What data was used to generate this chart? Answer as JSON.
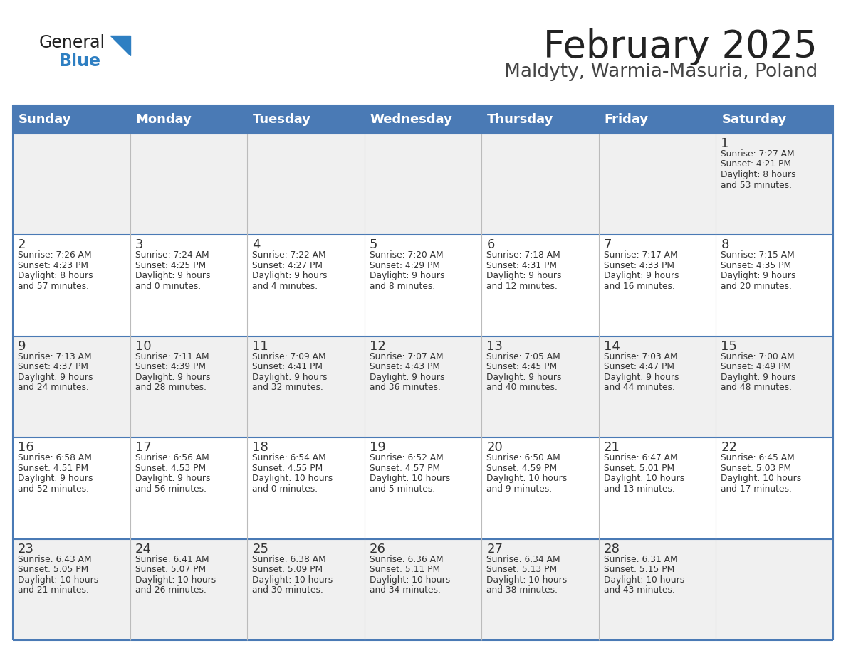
{
  "title": "February 2025",
  "subtitle": "Maldyty, Warmia-Masuria, Poland",
  "days_of_week": [
    "Sunday",
    "Monday",
    "Tuesday",
    "Wednesday",
    "Thursday",
    "Friday",
    "Saturday"
  ],
  "header_bg": "#4a7ab5",
  "header_text": "#ffffff",
  "cell_bg_light": "#f0f0f0",
  "cell_bg_white": "#ffffff",
  "line_color": "#4a7ab5",
  "text_color": "#333333",
  "title_color": "#222222",
  "subtitle_color": "#444444",
  "logo_general_color": "#222222",
  "logo_blue_color": "#2e7fc2",
  "calendar": [
    [
      {
        "day": null,
        "info": ""
      },
      {
        "day": null,
        "info": ""
      },
      {
        "day": null,
        "info": ""
      },
      {
        "day": null,
        "info": ""
      },
      {
        "day": null,
        "info": ""
      },
      {
        "day": null,
        "info": ""
      },
      {
        "day": 1,
        "info": "Sunrise: 7:27 AM\nSunset: 4:21 PM\nDaylight: 8 hours\nand 53 minutes."
      }
    ],
    [
      {
        "day": 2,
        "info": "Sunrise: 7:26 AM\nSunset: 4:23 PM\nDaylight: 8 hours\nand 57 minutes."
      },
      {
        "day": 3,
        "info": "Sunrise: 7:24 AM\nSunset: 4:25 PM\nDaylight: 9 hours\nand 0 minutes."
      },
      {
        "day": 4,
        "info": "Sunrise: 7:22 AM\nSunset: 4:27 PM\nDaylight: 9 hours\nand 4 minutes."
      },
      {
        "day": 5,
        "info": "Sunrise: 7:20 AM\nSunset: 4:29 PM\nDaylight: 9 hours\nand 8 minutes."
      },
      {
        "day": 6,
        "info": "Sunrise: 7:18 AM\nSunset: 4:31 PM\nDaylight: 9 hours\nand 12 minutes."
      },
      {
        "day": 7,
        "info": "Sunrise: 7:17 AM\nSunset: 4:33 PM\nDaylight: 9 hours\nand 16 minutes."
      },
      {
        "day": 8,
        "info": "Sunrise: 7:15 AM\nSunset: 4:35 PM\nDaylight: 9 hours\nand 20 minutes."
      }
    ],
    [
      {
        "day": 9,
        "info": "Sunrise: 7:13 AM\nSunset: 4:37 PM\nDaylight: 9 hours\nand 24 minutes."
      },
      {
        "day": 10,
        "info": "Sunrise: 7:11 AM\nSunset: 4:39 PM\nDaylight: 9 hours\nand 28 minutes."
      },
      {
        "day": 11,
        "info": "Sunrise: 7:09 AM\nSunset: 4:41 PM\nDaylight: 9 hours\nand 32 minutes."
      },
      {
        "day": 12,
        "info": "Sunrise: 7:07 AM\nSunset: 4:43 PM\nDaylight: 9 hours\nand 36 minutes."
      },
      {
        "day": 13,
        "info": "Sunrise: 7:05 AM\nSunset: 4:45 PM\nDaylight: 9 hours\nand 40 minutes."
      },
      {
        "day": 14,
        "info": "Sunrise: 7:03 AM\nSunset: 4:47 PM\nDaylight: 9 hours\nand 44 minutes."
      },
      {
        "day": 15,
        "info": "Sunrise: 7:00 AM\nSunset: 4:49 PM\nDaylight: 9 hours\nand 48 minutes."
      }
    ],
    [
      {
        "day": 16,
        "info": "Sunrise: 6:58 AM\nSunset: 4:51 PM\nDaylight: 9 hours\nand 52 minutes."
      },
      {
        "day": 17,
        "info": "Sunrise: 6:56 AM\nSunset: 4:53 PM\nDaylight: 9 hours\nand 56 minutes."
      },
      {
        "day": 18,
        "info": "Sunrise: 6:54 AM\nSunset: 4:55 PM\nDaylight: 10 hours\nand 0 minutes."
      },
      {
        "day": 19,
        "info": "Sunrise: 6:52 AM\nSunset: 4:57 PM\nDaylight: 10 hours\nand 5 minutes."
      },
      {
        "day": 20,
        "info": "Sunrise: 6:50 AM\nSunset: 4:59 PM\nDaylight: 10 hours\nand 9 minutes."
      },
      {
        "day": 21,
        "info": "Sunrise: 6:47 AM\nSunset: 5:01 PM\nDaylight: 10 hours\nand 13 minutes."
      },
      {
        "day": 22,
        "info": "Sunrise: 6:45 AM\nSunset: 5:03 PM\nDaylight: 10 hours\nand 17 minutes."
      }
    ],
    [
      {
        "day": 23,
        "info": "Sunrise: 6:43 AM\nSunset: 5:05 PM\nDaylight: 10 hours\nand 21 minutes."
      },
      {
        "day": 24,
        "info": "Sunrise: 6:41 AM\nSunset: 5:07 PM\nDaylight: 10 hours\nand 26 minutes."
      },
      {
        "day": 25,
        "info": "Sunrise: 6:38 AM\nSunset: 5:09 PM\nDaylight: 10 hours\nand 30 minutes."
      },
      {
        "day": 26,
        "info": "Sunrise: 6:36 AM\nSunset: 5:11 PM\nDaylight: 10 hours\nand 34 minutes."
      },
      {
        "day": 27,
        "info": "Sunrise: 6:34 AM\nSunset: 5:13 PM\nDaylight: 10 hours\nand 38 minutes."
      },
      {
        "day": 28,
        "info": "Sunrise: 6:31 AM\nSunset: 5:15 PM\nDaylight: 10 hours\nand 43 minutes."
      },
      {
        "day": null,
        "info": ""
      }
    ]
  ]
}
